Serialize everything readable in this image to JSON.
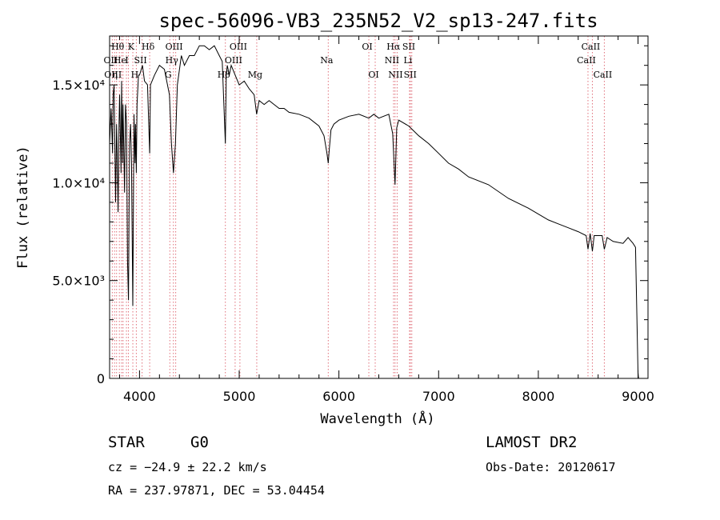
{
  "chart_data": {
    "type": "line",
    "title": "spec-56096-VB3_235N52_V2_sp13-247.fits",
    "xlabel": "Wavelength (Å)",
    "ylabel": "Flux (relative)",
    "xlim": [
      3700,
      9100
    ],
    "ylim": [
      0,
      17500
    ],
    "x_ticks": [
      4000,
      5000,
      6000,
      7000,
      8000,
      9000
    ],
    "y_ticks": [
      {
        "value": 0,
        "label": "0"
      },
      {
        "value": 5000,
        "label": "5.0×10³"
      },
      {
        "value": 10000,
        "label": "1.0×10⁴"
      },
      {
        "value": 15000,
        "label": "1.5×10⁴"
      }
    ],
    "grid": false,
    "series": [
      {
        "x": [
          3700,
          3715,
          3730,
          3735,
          3745,
          3760,
          3770,
          3775,
          3785,
          3795,
          3800,
          3815,
          3820,
          3830,
          3835,
          3850,
          3860,
          3870,
          3880,
          3889,
          3900,
          3910,
          3920,
          3933,
          3945,
          3955,
          3960,
          3968,
          3975,
          3990,
          4000,
          4030,
          4050,
          4080,
          4102,
          4110,
          4150,
          4200,
          4250,
          4300,
          4320,
          4340,
          4360,
          4380,
          4420,
          4450,
          4500,
          4550,
          4600,
          4650,
          4700,
          4750,
          4800,
          4830,
          4861,
          4870,
          4880,
          4900,
          4920,
          4960,
          5000,
          5050,
          5100,
          5150,
          5175,
          5200,
          5250,
          5300,
          5350,
          5400,
          5450,
          5500,
          5600,
          5700,
          5800,
          5850,
          5880,
          5893,
          5900,
          5920,
          5950,
          6000,
          6100,
          6200,
          6300,
          6350,
          6400,
          6500,
          6540,
          6563,
          6580,
          6600,
          6700,
          6800,
          6900,
          7000,
          7100,
          7200,
          7300,
          7500,
          7700,
          7900,
          8000,
          8100,
          8200,
          8300,
          8400,
          8480,
          8498,
          8520,
          8542,
          8560,
          8600,
          8640,
          8662,
          8690,
          8750,
          8850,
          8900,
          8950,
          8975,
          9000,
          9005
        ],
        "y": [
          12000,
          13800,
          11500,
          14500,
          15000,
          9000,
          13000,
          12000,
          8500,
          13000,
          14500,
          10500,
          15200,
          11000,
          14000,
          9500,
          14000,
          13000,
          6000,
          4000,
          12000,
          13000,
          11000,
          3700,
          13500,
          11000,
          13000,
          10500,
          14000,
          15500,
          15500,
          16000,
          15200,
          15000,
          11500,
          15000,
          15500,
          16000,
          15800,
          14500,
          12000,
          10500,
          12000,
          15000,
          16500,
          16000,
          16500,
          16500,
          17000,
          17000,
          16800,
          17000,
          16500,
          16200,
          12000,
          15500,
          16000,
          15500,
          16000,
          15500,
          15000,
          15200,
          14800,
          14500,
          13500,
          14200,
          14000,
          14200,
          14000,
          13800,
          13800,
          13600,
          13500,
          13300,
          12900,
          12400,
          11500,
          11000,
          11500,
          12700,
          13000,
          13200,
          13400,
          13500,
          13300,
          13500,
          13300,
          13500,
          12500,
          9900,
          12800,
          13200,
          12900,
          12400,
          12000,
          11500,
          11000,
          10700,
          10300,
          9900,
          9200,
          8700,
          8400,
          8100,
          7900,
          7700,
          7500,
          7300,
          6600,
          7400,
          6500,
          7300,
          7300,
          7300,
          6600,
          7200,
          7000,
          6900,
          7200,
          6900,
          6700,
          300,
          0
        ]
      }
    ],
    "lines": [
      {
        "wl": 3727,
        "label": "OII",
        "row": 1
      },
      {
        "wl": 3750,
        "label": "OIII",
        "row": 2
      },
      {
        "wl": 3770,
        "label": "η",
        "row": 2
      },
      {
        "wl": 3798,
        "label": "Hθ",
        "row": 0
      },
      {
        "wl": 3820,
        "label": "He",
        "row": 1
      },
      {
        "wl": 3835,
        "label": "",
        "row": 0
      },
      {
        "wl": 3869,
        "label": "",
        "row": 0
      },
      {
        "wl": 3889,
        "label": "I",
        "row": 1
      },
      {
        "wl": 3933,
        "label": "K",
        "row": 0
      },
      {
        "wl": 3968,
        "label": "H",
        "row": 2
      },
      {
        "wl": 4026,
        "label": "SII",
        "row": 1
      },
      {
        "wl": 4102,
        "label": "Hδ",
        "row": 0
      },
      {
        "wl": 4304,
        "label": "G",
        "row": 2
      },
      {
        "wl": 4340,
        "label": "Hγ",
        "row": 1
      },
      {
        "wl": 4363,
        "label": "OIII",
        "row": 0
      },
      {
        "wl": 4861,
        "label": "Hβ",
        "row": 2
      },
      {
        "wl": 4959,
        "label": "OIII",
        "row": 1
      },
      {
        "wl": 5007,
        "label": "OIII",
        "row": 0
      },
      {
        "wl": 5176,
        "label": "Mg",
        "row": 2
      },
      {
        "wl": 5893,
        "label": "Na",
        "row": 1
      },
      {
        "wl": 6300,
        "label": "OI",
        "row": 0
      },
      {
        "wl": 6364,
        "label": "OI",
        "row": 2
      },
      {
        "wl": 6548,
        "label": "NII",
        "row": 1
      },
      {
        "wl": 6563,
        "label": "Hα",
        "row": 0
      },
      {
        "wl": 6584,
        "label": "NII",
        "row": 2
      },
      {
        "wl": 6708,
        "label": "Li",
        "row": 1
      },
      {
        "wl": 6717,
        "label": "SII",
        "row": 0
      },
      {
        "wl": 6731,
        "label": "SII",
        "row": 2
      },
      {
        "wl": 8498,
        "label": "CaII",
        "row": 1
      },
      {
        "wl": 8542,
        "label": "CaII",
        "row": 0
      },
      {
        "wl": 8662,
        "label": "CaII",
        "row": 2
      }
    ]
  },
  "info": {
    "class": "STAR",
    "subclass": "G0",
    "cz": "cz = −24.9 ± 22.2 km/s",
    "coords": "RA = 237.97871, DEC =  53.04454",
    "survey": "LAMOST DR2",
    "obs_date": "Obs-Date: 20120617"
  }
}
